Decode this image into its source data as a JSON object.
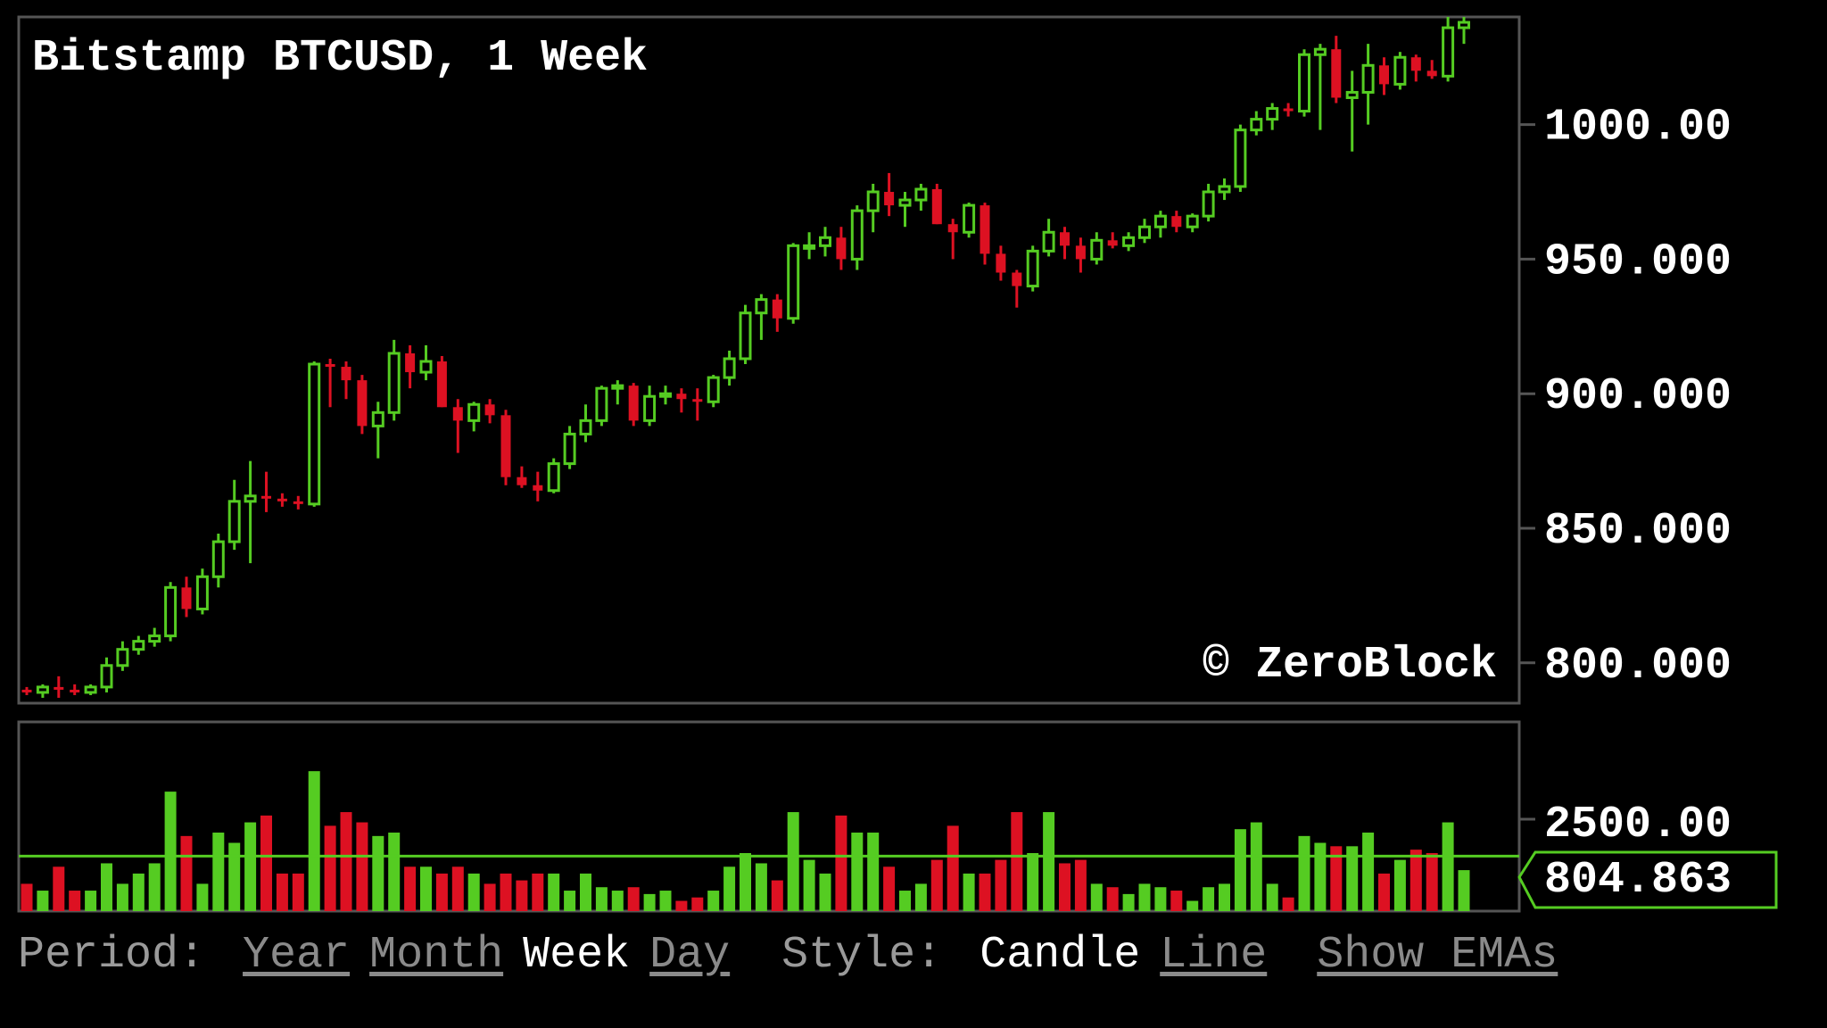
{
  "chart_data": {
    "type": "candlestick",
    "title": "Bitstamp BTCUSD, 1 Week",
    "watermark": "© ZeroBlock",
    "price_axis": {
      "ylim": [
        785,
        1040
      ],
      "tick_values": [
        800,
        850,
        900,
        950,
        1000
      ],
      "tick_labels": [
        "800.000",
        "850.000",
        "900.000",
        "950.000",
        "1000.00"
      ]
    },
    "volume_axis": {
      "tick_label": "2500.00",
      "current_label": "804.863"
    },
    "colors": {
      "up": "#55cc22",
      "down": "#dd1122",
      "frame": "#555555",
      "marker": "#55cc22"
    },
    "candles": [
      [
        790,
        791,
        788,
        789,
        400
      ],
      [
        789,
        792,
        787,
        791,
        300
      ],
      [
        791,
        795,
        787,
        790,
        650
      ],
      [
        790,
        792,
        788,
        789,
        300
      ],
      [
        789,
        792,
        788,
        791,
        300
      ],
      [
        791,
        802,
        789,
        799,
        700
      ],
      [
        799,
        808,
        797,
        805,
        400
      ],
      [
        805,
        810,
        803,
        808,
        550
      ],
      [
        808,
        813,
        806,
        810,
        700
      ],
      [
        810,
        830,
        808,
        828,
        1750
      ],
      [
        828,
        832,
        817,
        820,
        1100
      ],
      [
        820,
        835,
        818,
        832,
        400
      ],
      [
        832,
        848,
        828,
        845,
        1150
      ],
      [
        845,
        868,
        842,
        860,
        1000
      ],
      [
        860,
        875,
        837,
        862,
        1300
      ],
      [
        862,
        871,
        856,
        861,
        1400
      ],
      [
        861,
        863,
        858,
        860,
        550
      ],
      [
        860,
        862,
        857,
        859,
        550
      ],
      [
        859,
        912,
        858,
        911,
        2050
      ],
      [
        911,
        913,
        895,
        910,
        1250
      ],
      [
        910,
        912,
        898,
        905,
        1450
      ],
      [
        905,
        907,
        885,
        888,
        1300
      ],
      [
        888,
        897,
        876,
        893,
        1100
      ],
      [
        893,
        920,
        890,
        915,
        1150
      ],
      [
        915,
        918,
        902,
        908,
        650
      ],
      [
        908,
        918,
        905,
        912,
        650
      ],
      [
        912,
        914,
        895,
        895,
        550
      ],
      [
        895,
        898,
        878,
        890,
        650
      ],
      [
        890,
        897,
        886,
        896,
        550
      ],
      [
        896,
        898,
        889,
        892,
        400
      ],
      [
        892,
        894,
        866,
        869,
        550
      ],
      [
        869,
        873,
        865,
        866,
        450
      ],
      [
        866,
        871,
        860,
        864,
        550
      ],
      [
        864,
        876,
        863,
        874,
        550
      ],
      [
        874,
        888,
        872,
        885,
        300
      ],
      [
        885,
        896,
        882,
        890,
        550
      ],
      [
        890,
        903,
        888,
        902,
        350
      ],
      [
        902,
        905,
        896,
        903,
        300
      ],
      [
        903,
        904,
        888,
        890,
        350
      ],
      [
        890,
        903,
        888,
        899,
        250
      ],
      [
        899,
        903,
        896,
        900,
        300
      ],
      [
        900,
        902,
        893,
        898,
        150
      ],
      [
        898,
        902,
        890,
        897,
        200
      ],
      [
        897,
        907,
        895,
        906,
        300
      ],
      [
        906,
        916,
        903,
        913,
        650
      ],
      [
        913,
        933,
        911,
        930,
        850
      ],
      [
        930,
        937,
        920,
        935,
        700
      ],
      [
        935,
        937,
        923,
        928,
        450
      ],
      [
        928,
        956,
        926,
        955,
        1450
      ],
      [
        955,
        960,
        950,
        955,
        750
      ],
      [
        955,
        962,
        951,
        958,
        550
      ],
      [
        958,
        962,
        946,
        950,
        1400
      ],
      [
        950,
        970,
        946,
        968,
        1150
      ],
      [
        968,
        978,
        960,
        975,
        1150
      ],
      [
        975,
        982,
        966,
        970,
        650
      ],
      [
        970,
        975,
        962,
        972,
        300
      ],
      [
        972,
        978,
        968,
        976,
        400
      ],
      [
        976,
        978,
        963,
        963,
        750
      ],
      [
        963,
        965,
        950,
        960,
        1250
      ],
      [
        960,
        971,
        958,
        970,
        550
      ],
      [
        970,
        971,
        948,
        952,
        550
      ],
      [
        952,
        955,
        942,
        945,
        750
      ],
      [
        945,
        946,
        932,
        940,
        1450
      ],
      [
        940,
        955,
        938,
        953,
        850
      ],
      [
        953,
        965,
        951,
        960,
        1450
      ],
      [
        960,
        962,
        950,
        955,
        700
      ],
      [
        955,
        958,
        945,
        950,
        750
      ],
      [
        950,
        960,
        948,
        957,
        400
      ],
      [
        957,
        960,
        954,
        955,
        350
      ],
      [
        955,
        960,
        953,
        958,
        250
      ],
      [
        958,
        965,
        956,
        962,
        400
      ],
      [
        962,
        968,
        958,
        966,
        350
      ],
      [
        966,
        968,
        960,
        962,
        300
      ],
      [
        962,
        967,
        960,
        966,
        150
      ],
      [
        966,
        978,
        964,
        975,
        350
      ],
      [
        975,
        980,
        972,
        977,
        400
      ],
      [
        977,
        1000,
        975,
        998,
        1200
      ],
      [
        998,
        1005,
        996,
        1002,
        1300
      ],
      [
        1002,
        1008,
        998,
        1006,
        400
      ],
      [
        1006,
        1008,
        1003,
        1005,
        200
      ],
      [
        1005,
        1028,
        1003,
        1026,
        1100
      ],
      [
        1026,
        1030,
        998,
        1028,
        1000
      ],
      [
        1028,
        1033,
        1008,
        1010,
        950
      ],
      [
        1010,
        1020,
        990,
        1012,
        950
      ],
      [
        1012,
        1030,
        1000,
        1022,
        1150
      ],
      [
        1022,
        1025,
        1011,
        1015,
        550
      ],
      [
        1015,
        1027,
        1013,
        1025,
        750
      ],
      [
        1025,
        1026,
        1016,
        1020,
        900
      ],
      [
        1020,
        1024,
        1017,
        1018,
        850
      ],
      [
        1018,
        1040,
        1016,
        1036,
        1300
      ],
      [
        1036,
        1040,
        1030,
        1038,
        600
      ]
    ]
  },
  "controls": {
    "period_label": "Period:",
    "periods": [
      {
        "label": "Year",
        "active": false
      },
      {
        "label": "Month",
        "active": false
      },
      {
        "label": "Week",
        "active": true
      },
      {
        "label": "Day",
        "active": false
      }
    ],
    "style_label": "Style:",
    "styles": [
      {
        "label": "Candle",
        "active": true
      },
      {
        "label": "Line",
        "active": false
      }
    ],
    "ema_label": "Show EMAs"
  }
}
